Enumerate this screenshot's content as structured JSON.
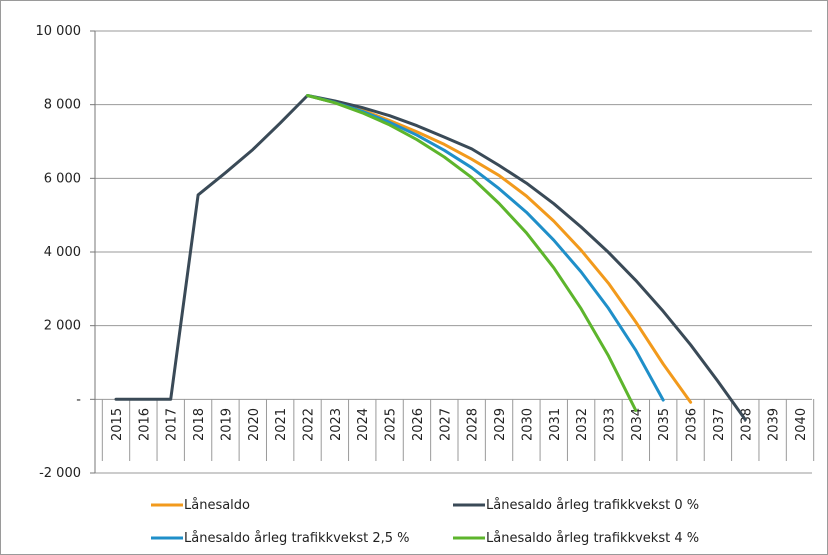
{
  "chart_data": {
    "type": "line",
    "x": [
      2015,
      2016,
      2017,
      2018,
      2019,
      2020,
      2021,
      2022,
      2023,
      2024,
      2025,
      2026,
      2027,
      2028,
      2029,
      2030,
      2031,
      2032,
      2033,
      2034,
      2035,
      2036,
      2037,
      2038,
      2039,
      2040
    ],
    "x_tick_labels": [
      "2015",
      "2016",
      "2017",
      "2018",
      "2019",
      "2020",
      "2021",
      "2022",
      "2023",
      "2024",
      "2025",
      "2026",
      "2027",
      "2028",
      "2029",
      "2030",
      "2031",
      "2032",
      "2033",
      "2034",
      "2035",
      "2036",
      "2037",
      "2038",
      "2039",
      "2040"
    ],
    "y_tick_labels": [
      "10 000",
      "8 000",
      "6 000",
      "4 000",
      "2 000",
      "-",
      "-2 000"
    ],
    "y_ticks": [
      10000,
      8000,
      6000,
      4000,
      2000,
      0,
      -2000
    ],
    "ylim": [
      -2000,
      10000
    ],
    "grid": true,
    "legend_position": "bottom",
    "series": [
      {
        "name": "Lånesaldo",
        "color": "#f29a1c",
        "x": [
          2022,
          2023,
          2024,
          2025,
          2026,
          2027,
          2028,
          2029,
          2030,
          2031,
          2032,
          2033,
          2034,
          2035,
          2036,
          2037
        ],
        "values": [
          8250,
          8060,
          7850,
          7570,
          7260,
          6920,
          6520,
          6080,
          5520,
          4840,
          4050,
          3150,
          2100,
          960,
          -80,
          null
        ]
      },
      {
        "name": "Lånesaldo årleg trafikkvekst 0 %",
        "color": "#3a4a57",
        "x": [
          2015,
          2016,
          2017,
          2018,
          2019,
          2020,
          2021,
          2022,
          2023,
          2024,
          2025,
          2026,
          2027,
          2028,
          2029,
          2030,
          2031,
          2032,
          2033,
          2034,
          2035,
          2036,
          2037,
          2038,
          2039,
          2040
        ],
        "values": [
          0,
          0,
          0,
          5550,
          6150,
          6780,
          7500,
          8250,
          8100,
          7920,
          7700,
          7430,
          7120,
          6800,
          6350,
          5870,
          5310,
          4680,
          3990,
          3230,
          2390,
          1480,
          490,
          -550,
          null,
          null
        ]
      },
      {
        "name": "Lånesaldo årleg trafikkvekst 2,5 %",
        "color": "#1f8fc9",
        "x": [
          2022,
          2023,
          2024,
          2025,
          2026,
          2027,
          2028,
          2029,
          2030,
          2031,
          2032,
          2033,
          2034,
          2035,
          2036
        ],
        "values": [
          8250,
          8060,
          7820,
          7520,
          7170,
          6760,
          6290,
          5720,
          5080,
          4320,
          3460,
          2470,
          1330,
          -20,
          null
        ]
      },
      {
        "name": "Lånesaldo årleg trafikkvekst 4 %",
        "color": "#5db52c",
        "x": [
          2022,
          2023,
          2024,
          2025,
          2026,
          2027,
          2028,
          2029,
          2030,
          2031,
          2032,
          2033,
          2034,
          2035
        ],
        "values": [
          8250,
          8050,
          7780,
          7450,
          7050,
          6580,
          6020,
          5320,
          4520,
          3570,
          2460,
          1180,
          -300,
          null
        ]
      }
    ]
  }
}
